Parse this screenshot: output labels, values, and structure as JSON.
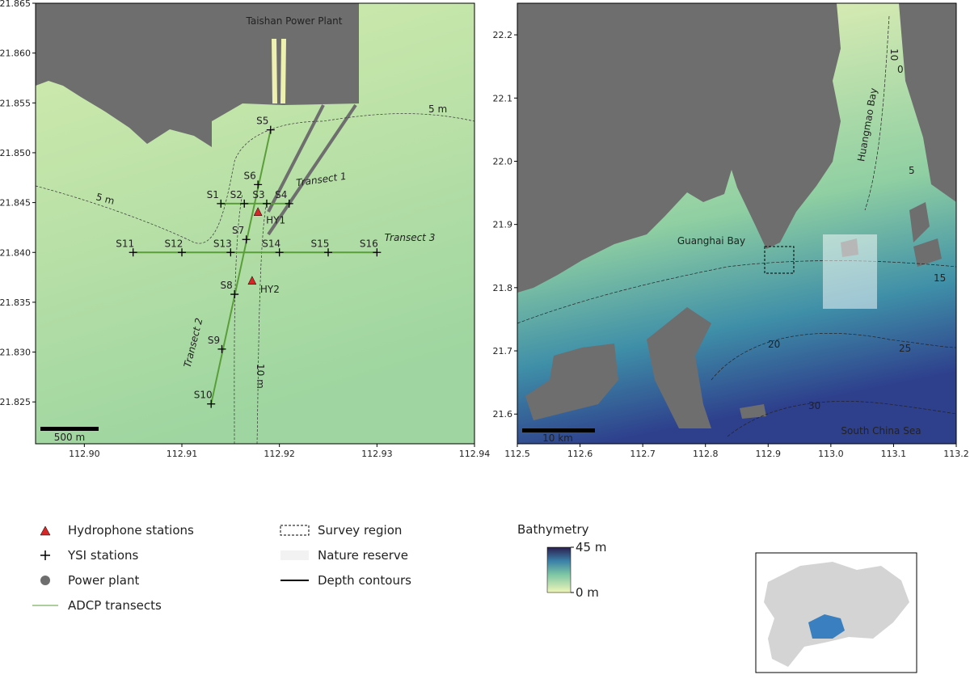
{
  "left_map": {
    "plant_label": "Taishan Power Plant",
    "xlim": [
      112.895,
      112.94
    ],
    "ylim": [
      21.8208,
      21.865
    ],
    "xticks": [
      {
        "value": 112.9,
        "label": "112.90"
      },
      112.91,
      112.92,
      112.93,
      112.94
    ],
    "yticks": [
      21.825,
      {
        "value": 21.83,
        "label": "21.830"
      },
      21.835,
      {
        "value": 21.84,
        "label": "21.840"
      },
      21.845,
      {
        "value": 21.85,
        "label": "21.850"
      },
      21.855,
      {
        "value": 21.86,
        "label": "21.860"
      },
      21.865
    ],
    "ysi_stations": [
      {
        "name": "S1",
        "lon": 112.914,
        "lat": 21.8449
      },
      {
        "name": "S2",
        "lon": 112.9164,
        "lat": 21.8449
      },
      {
        "name": "S3",
        "lon": 112.9187,
        "lat": 21.8449
      },
      {
        "name": "S4",
        "lon": 112.921,
        "lat": 21.8449
      },
      {
        "name": "S5",
        "lon": 112.9191,
        "lat": 21.8523
      },
      {
        "name": "S6",
        "lon": 112.9178,
        "lat": 21.8468
      },
      {
        "name": "S7",
        "lon": 112.9166,
        "lat": 21.8413
      },
      {
        "name": "S8",
        "lon": 112.9154,
        "lat": 21.8358
      },
      {
        "name": "S9",
        "lon": 112.9141,
        "lat": 21.8303
      },
      {
        "name": "S10",
        "lon": 112.913,
        "lat": 21.8248
      },
      {
        "name": "S11",
        "lon": 112.905,
        "lat": 21.84
      },
      {
        "name": "S12",
        "lon": 112.91,
        "lat": 21.84
      },
      {
        "name": "S13",
        "lon": 112.915,
        "lat": 21.84
      },
      {
        "name": "S14",
        "lon": 112.92,
        "lat": 21.84
      },
      {
        "name": "S15",
        "lon": 112.925,
        "lat": 21.84
      },
      {
        "name": "S16",
        "lon": 112.93,
        "lat": 21.84
      }
    ],
    "hydrophones": [
      {
        "name": "HY1",
        "lon": 112.9178,
        "lat": 21.8441
      },
      {
        "name": "HY2",
        "lon": 112.9172,
        "lat": 21.8372
      }
    ],
    "transects": [
      "Transect 1",
      "Transect 2",
      "Transect 3"
    ],
    "contour_labels": [
      "5 m",
      "5 m",
      "10 m"
    ],
    "scale_bar": "500 m"
  },
  "right_map": {
    "xlim": [
      112.5,
      113.2
    ],
    "ylim": [
      21.553,
      22.25
    ],
    "xticks": [
      112.5,
      112.6,
      112.7,
      112.8,
      112.9,
      {
        "value": 113,
        "label": "113.0"
      },
      113.1,
      113.2
    ],
    "yticks": [
      21.6,
      21.7,
      21.8,
      21.9,
      {
        "value": 22,
        "label": "22.0"
      },
      22.1,
      22.2
    ],
    "places": [
      "Guanghai Bay",
      "Huangmao Bay",
      "South China Sea"
    ],
    "contour_labels": [
      0,
      5,
      10,
      15,
      20,
      25,
      30
    ],
    "scale_bar": "10 km"
  },
  "legend": {
    "items": [
      "Hydrophone stations",
      "YSI stations",
      "Power plant",
      "ADCP transects",
      "Survey region",
      "Nature reserve",
      "Depth contours"
    ],
    "hydrophone_color": "#d62728",
    "transect_color": "#5a9e3a"
  },
  "colorbar": {
    "title": "Bathymetry",
    "ticks": [
      {
        "value": 0,
        "label": "0 m"
      },
      {
        "value": 45,
        "label": "45 m"
      }
    ],
    "range": [
      0,
      45
    ]
  }
}
